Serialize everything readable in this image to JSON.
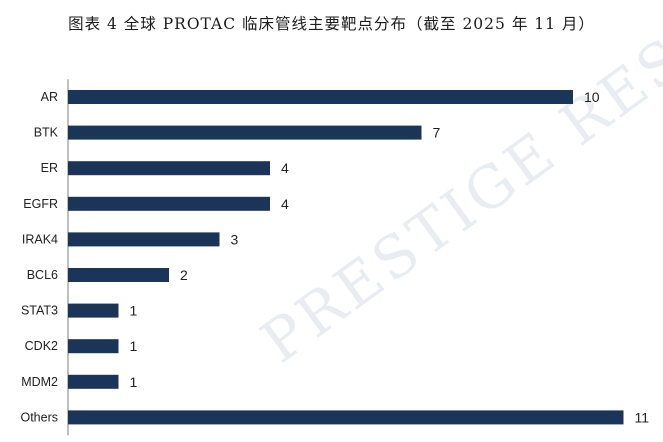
{
  "figure_title": "图表 4  全球 PROTAC 临床管线主要靶点分布（截至 2025 年 11 月）",
  "watermark": "PRESTIGE RESEARCH",
  "colors": {
    "bar": "#1a3558",
    "axis": "#7f7f7f",
    "watermark": "#e9edf2"
  },
  "chart_data": {
    "type": "bar",
    "orientation": "horizontal",
    "title": "图表 4  全球 PROTAC 临床管线主要靶点分布（截至 2025 年 11 月）",
    "xlabel": "",
    "ylabel": "",
    "categories": [
      "AR",
      "BTK",
      "ER",
      "EGFR",
      "IRAK4",
      "BCL6",
      "STAT3",
      "CDK2",
      "MDM2",
      "Others"
    ],
    "values": [
      10,
      7,
      4,
      4,
      3,
      2,
      1,
      1,
      1,
      11
    ],
    "xlim": [
      0,
      11
    ],
    "grid": false,
    "legend": "none",
    "data_labels": true
  }
}
